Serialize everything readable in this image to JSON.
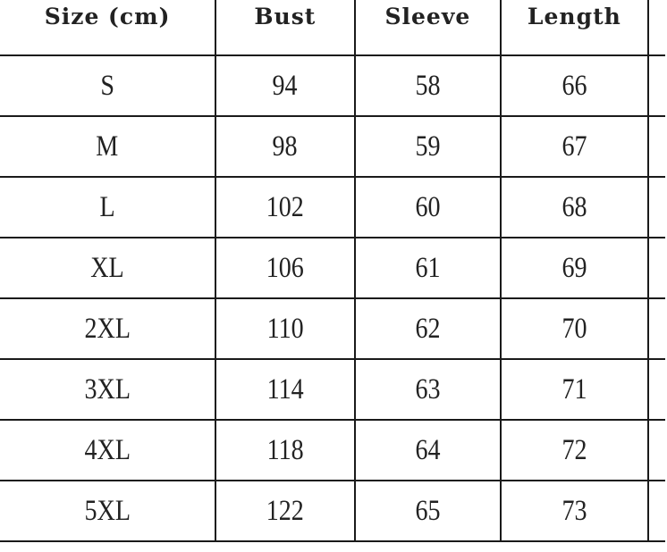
{
  "table": {
    "headers": [
      "Size (cm)",
      "Bust",
      "Sleeve",
      "Length"
    ],
    "rows": [
      [
        "S",
        "94",
        "58",
        "66"
      ],
      [
        "M",
        "98",
        "59",
        "67"
      ],
      [
        "L",
        "102",
        "60",
        "68"
      ],
      [
        "XL",
        "106",
        "61",
        "69"
      ],
      [
        "2XL",
        "110",
        "62",
        "70"
      ],
      [
        "3XL",
        "114",
        "63",
        "71"
      ],
      [
        "4XL",
        "118",
        "64",
        "72"
      ],
      [
        "5XL",
        "122",
        "65",
        "73"
      ]
    ]
  }
}
